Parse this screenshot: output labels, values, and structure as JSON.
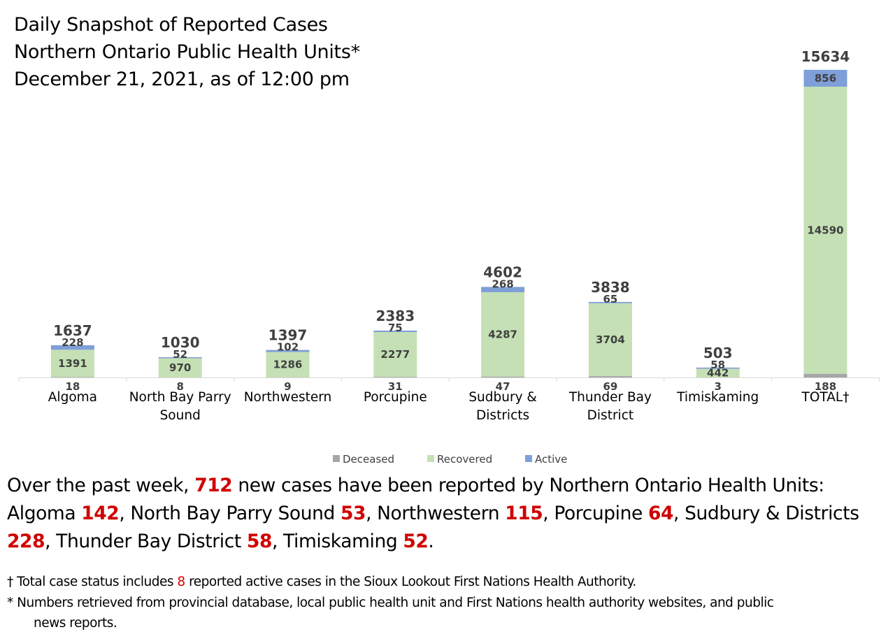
{
  "title_lines": [
    "Daily Snapshot of Reported Cases",
    "Northern Ontario Public Health Units*",
    "December 21, 2021, as of 12:00 pm"
  ],
  "chart_data": {
    "type": "bar",
    "stacked": true,
    "categories": [
      "Algoma",
      "North Bay Parry Sound",
      "Northwestern",
      "Porcupine",
      "Sudbury & Districts",
      "Thunder Bay District",
      "Timiskaming",
      "TOTAL†"
    ],
    "category_lines": [
      [
        "Algoma"
      ],
      [
        "North Bay Parry",
        "Sound"
      ],
      [
        "Northwestern"
      ],
      [
        "Porcupine"
      ],
      [
        "Sudbury &",
        "Districts"
      ],
      [
        "Thunder Bay",
        "District"
      ],
      [
        "Timiskaming"
      ],
      [
        "TOTAL†"
      ]
    ],
    "series": [
      {
        "name": "Deceased",
        "color": "#a6a6a6",
        "values": [
          18,
          8,
          9,
          31,
          47,
          69,
          3,
          188
        ]
      },
      {
        "name": "Recovered",
        "color": "#c5e0b4",
        "values": [
          1391,
          970,
          1286,
          2277,
          4287,
          3704,
          442,
          14590
        ]
      },
      {
        "name": "Active",
        "color": "#7f9fd8",
        "values": [
          228,
          52,
          102,
          75,
          268,
          65,
          58,
          856
        ]
      }
    ],
    "totals": [
      1637,
      1030,
      1397,
      2383,
      4602,
      3838,
      503,
      15634
    ],
    "legend_position": "bottom",
    "grid": false
  },
  "summary": [
    {
      "t": "Over the past week, "
    },
    {
      "t": "712",
      "hl": true
    },
    {
      "t": " new cases have been reported by Northern Ontario Health Units: Algoma "
    },
    {
      "t": "142",
      "hl": true
    },
    {
      "t": ", North Bay Parry Sound "
    },
    {
      "t": "53",
      "hl": true
    },
    {
      "t": ", Northwestern "
    },
    {
      "t": "115",
      "hl": true
    },
    {
      "t": ", Porcupine "
    },
    {
      "t": "64",
      "hl": true
    },
    {
      "t": ", Sudbury & Districts "
    },
    {
      "t": "228",
      "hl": true
    },
    {
      "t": ", Thunder Bay District "
    },
    {
      "t": "58",
      "hl": true
    },
    {
      "t": ", Timiskaming "
    },
    {
      "t": "52",
      "hl": true
    },
    {
      "t": "."
    }
  ],
  "footnotes": {
    "dagger_prefix": "† Total case status includes ",
    "dagger_number": "8",
    "dagger_suffix": " reported active cases in the Sioux Lookout First Nations Health Authority.",
    "star_line1": "* Numbers retrieved from provincial database, local public health unit and First Nations health authority websites, and public",
    "star_line2": "news reports."
  }
}
